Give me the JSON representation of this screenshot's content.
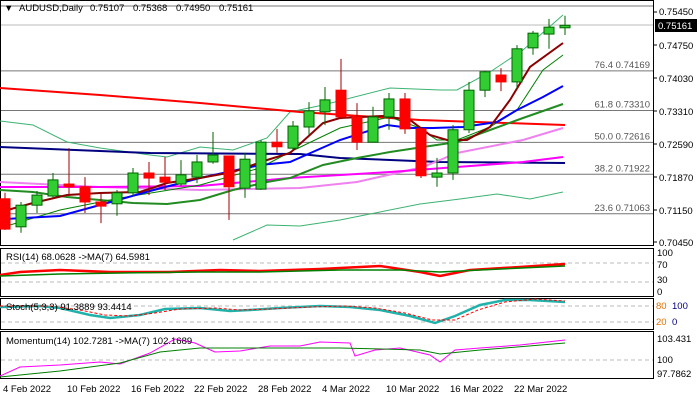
{
  "header": {
    "symbol": "AUDUSD,Daily",
    "open": "0.75107",
    "high": "0.75368",
    "low": "0.74950",
    "close": "0.75161"
  },
  "price_axis": {
    "labels": [
      "0.75450",
      "0.74750",
      "0.74030",
      "0.73310",
      "0.72590",
      "0.71870",
      "0.71150",
      "0.70450"
    ],
    "current": "0.75161"
  },
  "fib_levels": [
    {
      "label": "76.4 0.74169",
      "price": 0.74169
    },
    {
      "label": "61.8 0.73310",
      "price": 0.7331
    },
    {
      "label": "50.0 0.72616",
      "price": 0.72616
    },
    {
      "label": "38.2 0.71922",
      "price": 0.71922
    },
    {
      "label": "23.6 0.71063",
      "price": 0.71063
    }
  ],
  "colors": {
    "up": "#32cd32",
    "down": "#ff0000",
    "wick_up": "#006400",
    "wick_down": "#a00000",
    "current_bg": "#000000"
  },
  "candles": [
    [
      0.7139,
      0.7152,
      0.7071,
      0.7073
    ],
    [
      0.7078,
      0.7132,
      0.7065,
      0.7125
    ],
    [
      0.7125,
      0.7156,
      0.7108,
      0.7147
    ],
    [
      0.7145,
      0.7195,
      0.7141,
      0.718
    ],
    [
      0.7171,
      0.7249,
      0.7145,
      0.7165
    ],
    [
      0.7165,
      0.7186,
      0.7108,
      0.7132
    ],
    [
      0.7132,
      0.7152,
      0.7086,
      0.7123
    ],
    [
      0.7128,
      0.7158,
      0.7102,
      0.7152
    ],
    [
      0.7152,
      0.7206,
      0.7145,
      0.7195
    ],
    [
      0.7195,
      0.7219,
      0.7147,
      0.7184
    ],
    [
      0.7186,
      0.723,
      0.7158,
      0.7175
    ],
    [
      0.7171,
      0.7223,
      0.7167,
      0.7191
    ],
    [
      0.7186,
      0.7234,
      0.7173,
      0.7219
    ],
    [
      0.7219,
      0.7284,
      0.7215,
      0.7234
    ],
    [
      0.7232,
      0.7232,
      0.7093,
      0.7165
    ],
    [
      0.7162,
      0.7239,
      0.7141,
      0.7225
    ],
    [
      0.716,
      0.7267,
      0.7158,
      0.7262
    ],
    [
      0.7262,
      0.7291,
      0.7239,
      0.7252
    ],
    [
      0.7249,
      0.7308,
      0.7245,
      0.7297
    ],
    [
      0.7295,
      0.7349,
      0.7278,
      0.733
    ],
    [
      0.7328,
      0.7382,
      0.7299,
      0.7354
    ],
    [
      0.7375,
      0.7443,
      0.7312,
      0.7317
    ],
    [
      0.7317,
      0.7347,
      0.7245,
      0.7262
    ],
    [
      0.7262,
      0.7339,
      0.7262,
      0.7317
    ],
    [
      0.7317,
      0.7369,
      0.7289,
      0.7356
    ],
    [
      0.7356,
      0.7369,
      0.728,
      0.7291
    ],
    [
      0.7291,
      0.7291,
      0.7184,
      0.7189
    ],
    [
      0.7186,
      0.7228,
      0.7165,
      0.7195
    ],
    [
      0.7195,
      0.7299,
      0.718,
      0.7289
    ],
    [
      0.7289,
      0.7393,
      0.7282,
      0.7375
    ],
    [
      0.7375,
      0.7417,
      0.736,
      0.7415
    ],
    [
      0.7408,
      0.7423,
      0.7373,
      0.7393
    ],
    [
      0.7393,
      0.7473,
      0.7378,
      0.7465
    ],
    [
      0.7467,
      0.7504,
      0.7452,
      0.7499
    ],
    [
      0.7497,
      0.753,
      0.7465,
      0.7512
    ],
    [
      0.75107,
      0.75368,
      0.7495,
      0.75161
    ]
  ],
  "rsi": {
    "label": "RSI(14) 68.0628  ->MA(7) 64.5981",
    "axis": [
      "100",
      "70",
      "30",
      "0"
    ]
  },
  "stoch": {
    "label": "Stoch(5,3,3) 91.3889 93.4414",
    "axis": [
      "80",
      "100",
      "20",
      "0"
    ]
  },
  "momentum": {
    "label": "Momentum(14) 102.7281  ->MA(7) 102.1689",
    "axis": [
      "103.431",
      "100",
      "97.7862"
    ]
  },
  "dates": [
    "4 Feb 2022",
    "10 Feb 2022",
    "16 Feb 2022",
    "22 Feb 2022",
    "28 Feb 2022",
    "4 Mar 2022",
    "10 Mar 2022",
    "16 Mar 2022",
    "22 Mar 2022"
  ]
}
